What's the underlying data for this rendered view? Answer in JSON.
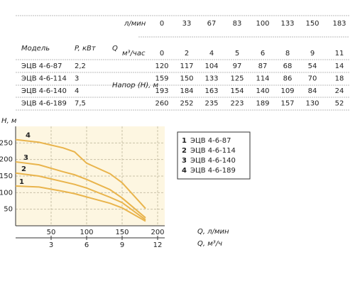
{
  "table": {
    "headers": {
      "model": "Модель",
      "power": "P, кВт",
      "q": "Q",
      "lpm_unit": "л/мин",
      "m3h_unit": "м³/час",
      "head": "Напор (Н), м"
    },
    "flow_lpm": [
      0,
      33,
      67,
      83,
      100,
      133,
      150,
      183
    ],
    "flow_m3h": [
      0,
      2,
      4,
      5,
      6,
      8,
      9,
      11
    ],
    "rows": [
      {
        "model": "ЭЦВ 4-6-87",
        "power": "2,2",
        "head": [
          120,
          117,
          104,
          97,
          87,
          68,
          54,
          14
        ]
      },
      {
        "model": "ЭЦВ 4-6-114",
        "power": "3",
        "head": [
          159,
          150,
          133,
          125,
          114,
          86,
          70,
          18
        ]
      },
      {
        "model": "ЭЦВ 4-6-140",
        "power": "4",
        "head": [
          193,
          184,
          163,
          154,
          140,
          109,
          84,
          24
        ]
      },
      {
        "model": "ЭЦВ 4-6-189",
        "power": "7,5",
        "head": [
          260,
          252,
          235,
          223,
          189,
          157,
          130,
          52
        ]
      }
    ]
  },
  "chart_data": {
    "type": "line",
    "ylabel": "H, м",
    "xlabel": "Q, л/мин",
    "x2label": "Q, м³/ч",
    "xlim": [
      0,
      210
    ],
    "xticks": [
      50,
      100,
      150,
      200
    ],
    "x2lim": [
      0,
      12.6
    ],
    "x2ticks": [
      3,
      6,
      9,
      12
    ],
    "ylim": [
      0,
      300
    ],
    "yticks": [
      50,
      100,
      150,
      200,
      250
    ],
    "grid": true,
    "color": "#e9b44c",
    "curve_labels": [
      "1",
      "2",
      "3",
      "4"
    ]
  }
}
